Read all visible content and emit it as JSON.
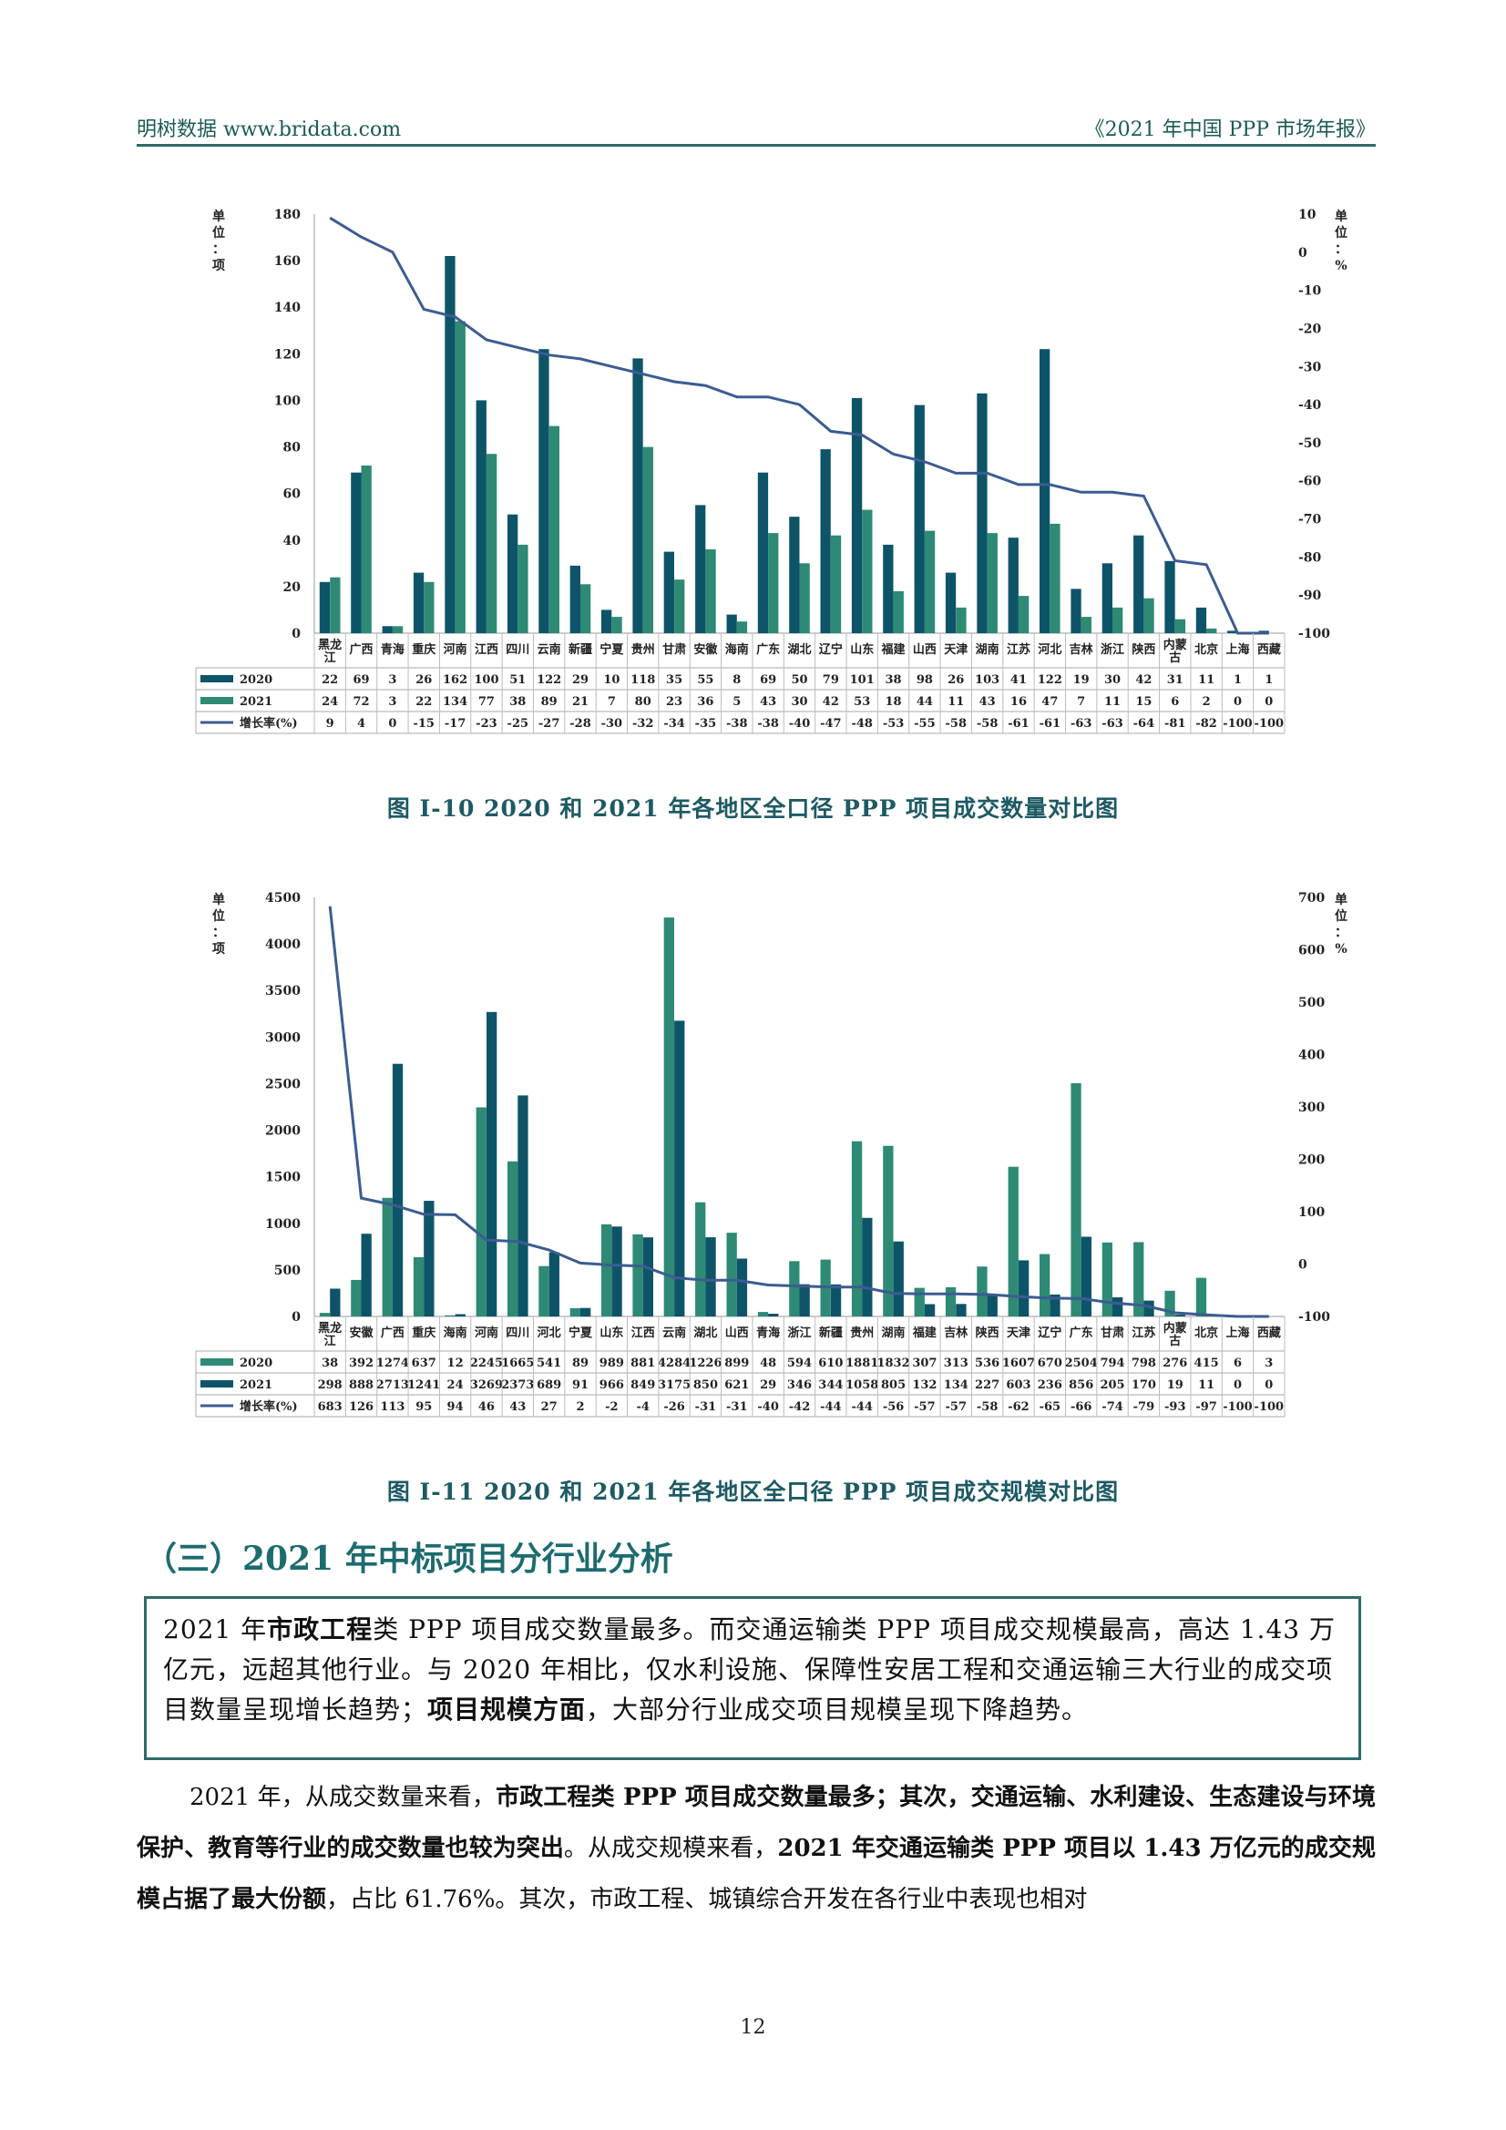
{
  "header": {
    "left": "明树数据 www.bridata.com",
    "right": "《2021 年中国 PPP 市场年报》"
  },
  "charts": {
    "c1": {
      "caption": "图  I-10    2020 和 2021 年各地区全口径 PPP 项目成交数量对比图",
      "left_unit": "单位：项",
      "right_unit": "单位：%"
    },
    "c2": {
      "caption": "图  I-11    2020 和 2021 年各地区全口径 PPP 项目成交规模对比图",
      "left_unit": "单位：项",
      "right_unit": "单位：%"
    }
  },
  "chart_data": [
    {
      "type": "bar",
      "title": "",
      "categories": [
        "黑龙江",
        "广西",
        "青海",
        "重庆",
        "河南",
        "江西",
        "四川",
        "云南",
        "新疆",
        "宁夏",
        "贵州",
        "甘肃",
        "安徽",
        "海南",
        "广东",
        "湖北",
        "辽宁",
        "山东",
        "福建",
        "山西",
        "天津",
        "湖南",
        "江苏",
        "河北",
        "吉林",
        "浙江",
        "陕西",
        "内蒙古",
        "北京",
        "上海",
        "西藏"
      ],
      "series": [
        {
          "name": "2020",
          "type": "bar",
          "axis": "left",
          "color": "#0e5468",
          "values": [
            22,
            69,
            3,
            26,
            162,
            100,
            51,
            122,
            29,
            10,
            118,
            35,
            55,
            8,
            69,
            50,
            79,
            101,
            38,
            98,
            26,
            103,
            41,
            122,
            19,
            30,
            42,
            31,
            11,
            1,
            1
          ]
        },
        {
          "name": "2021",
          "type": "bar",
          "axis": "left",
          "color": "#2e8a74",
          "values": [
            24,
            72,
            3,
            22,
            134,
            77,
            38,
            89,
            21,
            7,
            80,
            23,
            36,
            5,
            43,
            30,
            42,
            53,
            18,
            44,
            11,
            43,
            16,
            47,
            7,
            11,
            15,
            6,
            2,
            0,
            0
          ]
        },
        {
          "name": "增长率(%)",
          "type": "line",
          "axis": "right",
          "color": "#3c5c92",
          "values": [
            9,
            4,
            0,
            -15,
            -17,
            -23,
            -25,
            -27,
            -28,
            -30,
            -32,
            -34,
            -35,
            -38,
            -38,
            -40,
            -47,
            -48,
            -53,
            -55,
            -58,
            -58,
            -61,
            -61,
            -63,
            -63,
            -64,
            -81,
            -82,
            -100,
            -100
          ]
        }
      ],
      "ylim": [
        0,
        180
      ],
      "yticks": [
        0,
        20,
        40,
        60,
        80,
        100,
        120,
        140,
        160,
        180
      ],
      "y2lim": [
        -100,
        10
      ],
      "y2ticks": [
        -100,
        -90,
        -80,
        -70,
        -60,
        -50,
        -40,
        -30,
        -20,
        -10,
        0,
        10
      ],
      "ylabel": "单位：项",
      "y2label": "单位：%",
      "legend": "table-below"
    },
    {
      "type": "bar",
      "title": "",
      "categories": [
        "黑龙江",
        "安徽",
        "广西",
        "重庆",
        "海南",
        "河南",
        "四川",
        "河北",
        "宁夏",
        "山东",
        "江西",
        "云南",
        "湖北",
        "山西",
        "青海",
        "浙江",
        "新疆",
        "贵州",
        "湖南",
        "福建",
        "吉林",
        "陕西",
        "天津",
        "辽宁",
        "广东",
        "甘肃",
        "江苏",
        "内蒙古",
        "北京",
        "上海",
        "西藏"
      ],
      "series": [
        {
          "name": "2020",
          "type": "bar",
          "axis": "left",
          "color": "#2e8a74",
          "values": [
            38,
            392,
            1274,
            637,
            12,
            2245,
            1665,
            541,
            89,
            989,
            881,
            4284,
            1226,
            899,
            48,
            594,
            610,
            1881,
            1832,
            307,
            313,
            536,
            1607,
            670,
            2504,
            794,
            798,
            276,
            415,
            6,
            3
          ]
        },
        {
          "name": "2021",
          "type": "bar",
          "axis": "left",
          "color": "#0e5468",
          "values": [
            298,
            888,
            2713,
            1241,
            24,
            3269,
            2373,
            689,
            91,
            966,
            849,
            3175,
            850,
            621,
            29,
            346,
            344,
            1058,
            805,
            132,
            134,
            227,
            603,
            236,
            856,
            205,
            170,
            19,
            11,
            0,
            0
          ]
        },
        {
          "name": "增长率(%)",
          "type": "line",
          "axis": "right",
          "color": "#3c5c92",
          "values": [
            683,
            126,
            113,
            95,
            94,
            46,
            43,
            27,
            2,
            -2,
            -4,
            -26,
            -31,
            -31,
            -40,
            -42,
            -44,
            -44,
            -56,
            -57,
            -57,
            -58,
            -62,
            -65,
            -66,
            -74,
            -79,
            -93,
            -97,
            -100,
            -100
          ]
        }
      ],
      "ylim": [
        0,
        4500
      ],
      "yticks": [
        0,
        500,
        1000,
        1500,
        2000,
        2500,
        3000,
        3500,
        4000,
        4500
      ],
      "y2lim": [
        -100,
        700
      ],
      "y2ticks": [
        -100,
        0,
        100,
        200,
        300,
        400,
        500,
        600,
        700
      ],
      "ylabel": "单位：项",
      "y2label": "单位：%",
      "legend": "table-below"
    }
  ],
  "section": {
    "title": "（三）2021 年中标项目分行业分析",
    "summary_p1": "2021 年",
    "summary_b1": "市政工程",
    "summary_p2": "类 PPP 项目成交数量最多。而交通运输类 PPP 项目成交规模最高，高达 1.43 万亿元，远超其他行业。与 2020 年相比，仅水利设施、保障性安居工程和交通运输三大行业的成交项目数量呈现增长趋势；",
    "summary_b2": "项目规模方面",
    "summary_p3": "，大部分行业成交项目规模呈现下降趋势。",
    "body_p1": "2021 年，从成交数量来看，",
    "body_b1": "市政工程类 PPP 项目成交数量最多；其次，交通运输、水利建设、生态建设与环境保护、教育等行业的成交数量也较为突出",
    "body_p2": "。从成交规模来看，",
    "body_b2": "2021 年交通运输类 PPP 项目以 1.43 万亿元的成交规模占据了最大份额",
    "body_p3": "，占比 61.76%。其次，市政工程、城镇综合开发在各行业中表现也相对"
  },
  "page_number": "12"
}
